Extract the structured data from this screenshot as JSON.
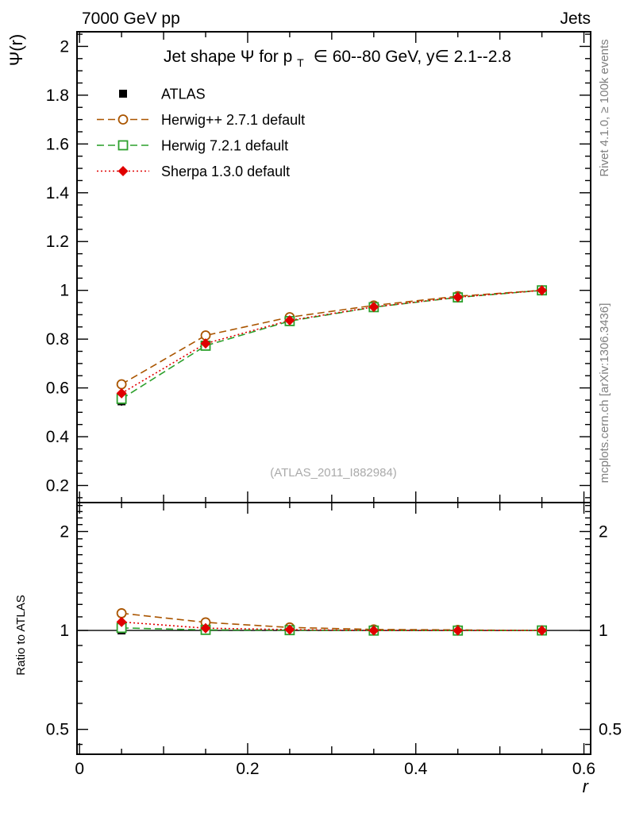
{
  "header": {
    "left": "7000 GeV pp",
    "right": "Jets"
  },
  "side_notes": {
    "top_right": "Rivet 4.1.0, ≥ 100k events",
    "bottom_right": "mcplots.cern.ch [arXiv:1306.3436]"
  },
  "watermark": "(ATLAS_2011_I882984)",
  "chart_data": {
    "type": "line",
    "title": {
      "prefix": "Jet shape Ψ for p",
      "sub": "T",
      "suffix": "∈ 60--80 GeV, y∈ 2.1--2.8"
    },
    "xlabel": "r",
    "ylabel": "Ψ(r)",
    "ratio_ylabel": "Ratio to ATLAS",
    "x": [
      0.05,
      0.15,
      0.25,
      0.35,
      0.45,
      0.55
    ],
    "xlim": [
      -0.003,
      0.608
    ],
    "x_major_ticks": [
      0,
      0.2,
      0.4,
      0.6
    ],
    "x_tick_labels": [
      "0",
      "0.2",
      "0.4",
      "0.6"
    ],
    "main_ylim": [
      0.13,
      2.06
    ],
    "main_major_ticks": [
      0.2,
      0.4,
      0.6,
      0.8,
      1,
      1.2,
      1.4,
      1.6,
      1.8,
      2
    ],
    "main_tick_labels": [
      "0.2",
      "0.4",
      "0.6",
      "0.8",
      "1",
      "1.2",
      "1.4",
      "1.6",
      "1.8",
      "2"
    ],
    "ratio_scale": "log",
    "ratio_ylim": [
      0.42,
      2.45
    ],
    "ratio_major_ticks": [
      0.5,
      1,
      2
    ],
    "ratio_tick_labels": [
      "0.5",
      "1",
      "2"
    ],
    "grid": false,
    "legend_position": "top-left",
    "series": [
      {
        "name": "ATLAS",
        "color": "#000000",
        "marker": "square-filled",
        "line": "none",
        "values": [
          0.545,
          0.77,
          0.872,
          0.932,
          0.972,
          1.0
        ],
        "errors": [
          0.018,
          0.01,
          0.007,
          0.005,
          0.003,
          0.002
        ],
        "ratio": [
          1,
          1,
          1,
          1,
          1,
          1
        ]
      },
      {
        "name": "Herwig++ 2.7.1 default",
        "color": "#aa5500",
        "marker": "circle-open",
        "line": "dashed",
        "values": [
          0.615,
          0.815,
          0.89,
          0.938,
          0.976,
          1.0
        ],
        "ratio": [
          1.128,
          1.058,
          1.021,
          1.007,
          1.004,
          1.0
        ]
      },
      {
        "name": "Herwig 7.2.1 default",
        "color": "#2ca02c",
        "marker": "square-open",
        "line": "dashed",
        "values": [
          0.555,
          0.773,
          0.874,
          0.931,
          0.971,
          1.0
        ],
        "ratio": [
          1.018,
          1.004,
          1.002,
          0.999,
          0.999,
          1.0
        ]
      },
      {
        "name": "Sherpa 1.3.0 default",
        "color": "#e00000",
        "marker": "diamond-filled",
        "line": "dotted",
        "values": [
          0.578,
          0.782,
          0.877,
          0.932,
          0.972,
          1.0
        ],
        "ratio": [
          1.061,
          1.016,
          1.006,
          1.0,
          1.0,
          1.0
        ]
      }
    ]
  }
}
